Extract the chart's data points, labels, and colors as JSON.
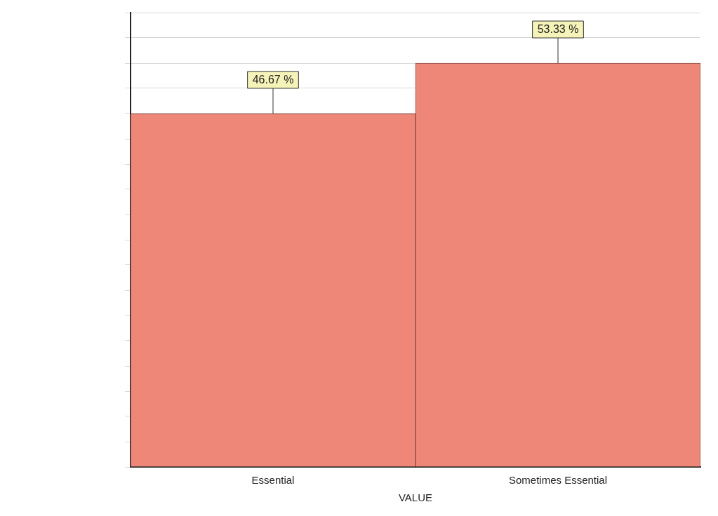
{
  "chart_data": {
    "type": "bar",
    "xlabel": "VALUE",
    "categories": [
      "Essential",
      "Sometimes Essential"
    ],
    "values": [
      46.67,
      53.33
    ],
    "color": "#ee8778",
    "value_labels": [
      "46.67 %",
      "53.33 %"
    ],
    "ylim": [
      0,
      60
    ],
    "yticks": [
      {
        "value": 0,
        "label": null
      },
      {
        "value": 3.33,
        "label": null
      },
      {
        "value": 6.67,
        "label": null
      },
      {
        "value": 10,
        "label": null
      },
      {
        "value": 13.33,
        "label": null
      },
      {
        "value": 16.67,
        "label": null
      },
      {
        "value": 20,
        "label": null
      },
      {
        "value": 23.33,
        "label": null
      },
      {
        "value": 26.67,
        "label": null
      },
      {
        "value": 30,
        "label": null
      },
      {
        "value": 33.33,
        "label": null
      },
      {
        "value": 36.67,
        "label": null
      },
      {
        "value": 40,
        "label": null
      },
      {
        "value": 43.33,
        "label": null
      },
      {
        "value": 46.67,
        "label": null
      },
      {
        "value": 50,
        "label": null
      },
      {
        "value": 53.33,
        "label": null
      },
      {
        "value": 56.67,
        "label": null
      },
      {
        "value": 60,
        "label": null
      }
    ],
    "tick_labels": "x",
    "grid": "y",
    "legend": false
  }
}
